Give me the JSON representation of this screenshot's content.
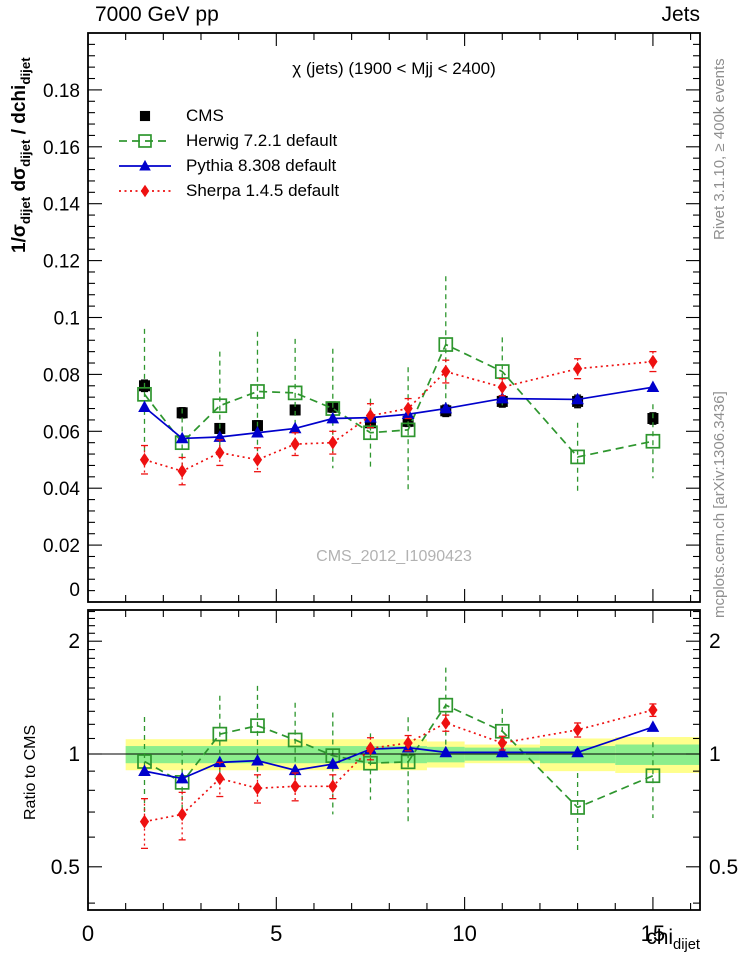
{
  "header": {
    "left": "7000 GeV pp",
    "right": "Jets"
  },
  "title": "χ (jets) (1900 < Mjj < 2400)",
  "watermark": "CMS_2012_I1090423",
  "side_text": {
    "top": "Rivet 3.1.10, ≥ 400k events",
    "bottom": "mcplots.cern.ch [arXiv:1306.3436]"
  },
  "axis_labels": {
    "y_main_p1": "1/σ",
    "y_main_s1": "dijet",
    "y_main_p2": " dσ",
    "y_main_s2": "dijet",
    "y_main_p3": " / dchi",
    "y_main_s3": "dijet",
    "y_ratio": "Ratio to CMS",
    "x_base": "chi",
    "x_sub": "dijet"
  },
  "colors": {
    "cms": "#000000",
    "herwig": "#2e962e",
    "pythia": "#0000cc",
    "sherpa": "#ee1111",
    "band_yellow": "#ffff8c",
    "band_green": "#8cee8c",
    "frame": "#000000"
  },
  "chart_data": {
    "type": "line",
    "x": [
      1.5,
      2.5,
      3.5,
      4.5,
      5.5,
      6.5,
      7.5,
      8.5,
      9.5,
      11,
      13,
      15
    ],
    "x_range": [
      0,
      16.25
    ],
    "x_major_ticks": [
      0,
      5,
      10,
      15
    ],
    "x_minor_ticks": [
      1,
      2,
      3,
      4,
      6,
      7,
      8,
      9,
      11,
      12,
      13,
      14,
      16
    ],
    "main_panel": {
      "y_range": [
        0,
        0.2
      ],
      "y_major_ticks": [
        0,
        0.02,
        0.04,
        0.06,
        0.08,
        0.1,
        0.12,
        0.14,
        0.16,
        0.18
      ],
      "y_minor_step": 0.004,
      "series": [
        {
          "name": "CMS",
          "color_key": "cms",
          "marker": "square-filled",
          "line": "none",
          "caps": true,
          "values": [
            0.076,
            0.0665,
            0.061,
            0.062,
            0.0675,
            0.0685,
            0.063,
            0.0635,
            0.0672,
            0.0705,
            0.0705,
            0.0645
          ],
          "errors": [
            0.002,
            0.0018,
            0.0017,
            0.0017,
            0.0017,
            0.0018,
            0.0018,
            0.0018,
            0.002,
            0.002,
            0.0022,
            0.002
          ]
        },
        {
          "name": "Herwig 7.2.1 default",
          "color_key": "herwig",
          "marker": "square-open",
          "line": "dashed",
          "caps": false,
          "values": [
            0.073,
            0.056,
            0.069,
            0.074,
            0.0735,
            0.068,
            0.0595,
            0.0605,
            0.0905,
            0.081,
            0.051,
            0.0565
          ],
          "errors": [
            0.023,
            0.012,
            0.019,
            0.021,
            0.019,
            0.021,
            0.012,
            0.022,
            0.024,
            0.012,
            0.012,
            0.013
          ]
        },
        {
          "name": "Pythia 8.308 default",
          "color_key": "pythia",
          "marker": "triangle-filled",
          "line": "solid",
          "caps": false,
          "values": [
            0.0685,
            0.0575,
            0.058,
            0.0595,
            0.061,
            0.0645,
            0.0648,
            0.066,
            0.068,
            0.0715,
            0.0712,
            0.0755
          ],
          "errors": [
            0.001,
            0.001,
            0.001,
            0.001,
            0.001,
            0.001,
            0.001,
            0.001,
            0.001,
            0.001,
            0.001,
            0.001
          ]
        },
        {
          "name": "Sherpa 1.4.5 default",
          "color_key": "sherpa",
          "marker": "diamond-filled",
          "line": "dotted",
          "caps": true,
          "values": [
            0.05,
            0.046,
            0.0525,
            0.05,
            0.0555,
            0.056,
            0.0655,
            0.068,
            0.081,
            0.0755,
            0.082,
            0.0845
          ],
          "errors": [
            0.005,
            0.0048,
            0.0045,
            0.0042,
            0.004,
            0.004,
            0.0042,
            0.0035,
            0.004,
            0.003,
            0.0035,
            0.0035
          ]
        }
      ]
    },
    "ratio_panel": {
      "y_scale": "log",
      "y_range": [
        0.3835,
        2.423
      ],
      "y_major_ticks": [
        0.5,
        1,
        2
      ],
      "y_minor_ticks": [
        0.4,
        0.6,
        0.7,
        0.8,
        0.9,
        1.1,
        1.2,
        1.3,
        1.4,
        1.5,
        1.6,
        1.7,
        1.8,
        1.9,
        2.1,
        2.2,
        2.3,
        2.4
      ],
      "reference_line": 1,
      "bands": [
        {
          "x1": 1,
          "x2": 9,
          "yellow": [
            0.905,
            1.095
          ],
          "green": [
            0.945,
            1.05
          ]
        },
        {
          "x1": 9,
          "x2": 10,
          "yellow": [
            0.92,
            1.08
          ],
          "green": [
            0.95,
            1.045
          ]
        },
        {
          "x1": 10,
          "x2": 12,
          "yellow": [
            0.945,
            1.06
          ],
          "green": [
            0.96,
            1.04
          ]
        },
        {
          "x1": 12,
          "x2": 14,
          "yellow": [
            0.9,
            1.1
          ],
          "green": [
            0.945,
            1.05
          ]
        },
        {
          "x1": 14,
          "x2": 16.25,
          "yellow": [
            0.89,
            1.11
          ],
          "green": [
            0.935,
            1.06
          ]
        }
      ],
      "series": [
        {
          "style_of": 1,
          "values": [
            0.955,
            0.84,
            1.13,
            1.19,
            1.09,
            0.99,
            0.945,
            0.953,
            1.35,
            1.15,
            0.72,
            0.875
          ],
          "errors": [
            0.3,
            0.18,
            0.3,
            0.33,
            0.28,
            0.3,
            0.19,
            0.3,
            0.35,
            0.17,
            0.17,
            0.2
          ]
        },
        {
          "style_of": 2,
          "values": [
            0.9,
            0.86,
            0.95,
            0.96,
            0.905,
            0.94,
            1.03,
            1.04,
            1.01,
            1.01,
            1.01,
            1.18
          ],
          "errors": [
            0.012,
            0.012,
            0.012,
            0.012,
            0.012,
            0.012,
            0.012,
            0.012,
            0.012,
            0.012,
            0.012,
            0.012
          ]
        },
        {
          "style_of": 3,
          "values": [
            0.66,
            0.69,
            0.86,
            0.81,
            0.82,
            0.82,
            1.035,
            1.07,
            1.21,
            1.07,
            1.16,
            1.31
          ],
          "errors": [
            0.1,
            0.1,
            0.09,
            0.07,
            0.07,
            0.06,
            0.07,
            0.05,
            0.06,
            0.045,
            0.05,
            0.05
          ]
        }
      ]
    }
  }
}
